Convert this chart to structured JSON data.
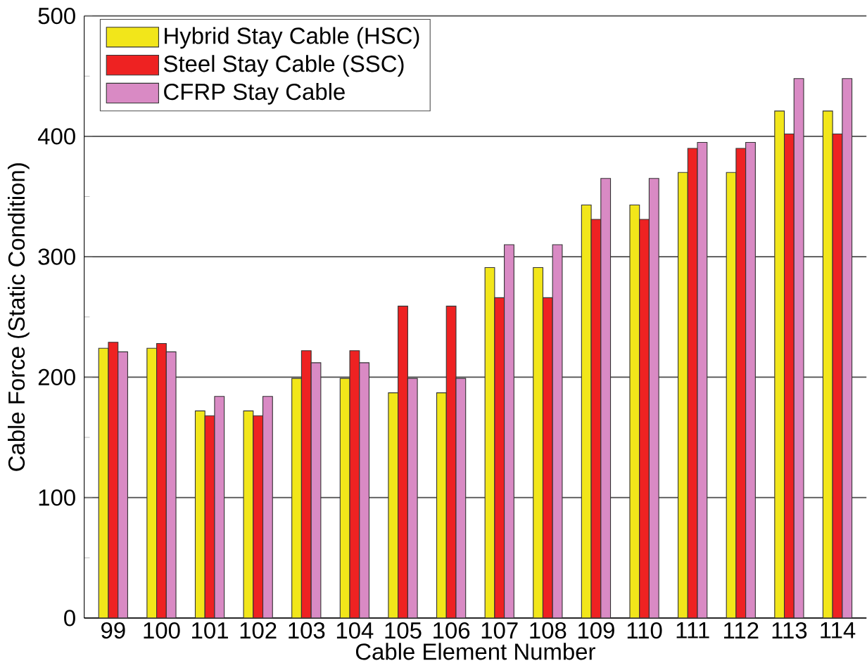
{
  "chart_data": {
    "type": "bar",
    "xlabel": "Cable Element Number",
    "ylabel": "Cable Force (Static Condition)",
    "categories": [
      "99",
      "100",
      "101",
      "102",
      "103",
      "104",
      "105",
      "106",
      "107",
      "108",
      "109",
      "110",
      "111",
      "112",
      "113",
      "114"
    ],
    "series": [
      {
        "name": "Hybrid Stay Cable (HSC)",
        "color": "#f2e61a",
        "values": [
          224,
          224,
          172,
          172,
          199,
          199,
          187,
          187,
          291,
          291,
          343,
          343,
          370,
          370,
          421,
          421
        ]
      },
      {
        "name": "Steel Stay Cable (SSC)",
        "color": "#ee2222",
        "values": [
          229,
          228,
          168,
          168,
          222,
          222,
          259,
          259,
          266,
          266,
          331,
          331,
          390,
          390,
          402,
          402
        ]
      },
      {
        "name": "CFRP Stay Cable",
        "color": "#d98ac4",
        "values": [
          221,
          221,
          184,
          184,
          212,
          212,
          199,
          199,
          310,
          310,
          365,
          365,
          395,
          395,
          448,
          448
        ]
      }
    ],
    "ylim": [
      0,
      500
    ],
    "yticks": [
      0,
      100,
      200,
      300,
      400,
      500
    ],
    "grid": "y",
    "legend": "top left"
  }
}
